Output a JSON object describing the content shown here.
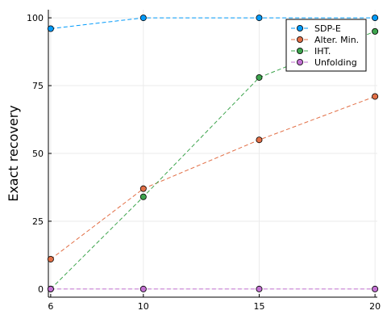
{
  "chart_data": {
    "type": "line",
    "title": "",
    "xlabel": "",
    "ylabel": "Exact recovery",
    "x": [
      6,
      10,
      15,
      20
    ],
    "xticks": [
      "6",
      "10",
      "15",
      "20"
    ],
    "yticks": [
      "0",
      "25",
      "50",
      "75",
      "100"
    ],
    "xlim": [
      5.9,
      20.1
    ],
    "ylim": [
      -3,
      103
    ],
    "grid": true,
    "legend_position": "top-right",
    "line_style": "dashed",
    "series": [
      {
        "name": "SDP-E",
        "color": "#009AFA",
        "values": [
          96,
          100,
          100,
          100
        ]
      },
      {
        "name": "Alter. Min.",
        "color": "#E26F46",
        "values": [
          11,
          37,
          55,
          71
        ]
      },
      {
        "name": "IHT.",
        "color": "#3DA44D",
        "values": [
          0,
          34,
          78,
          95
        ]
      },
      {
        "name": "Unfolding",
        "color": "#C271D2",
        "values": [
          0,
          0,
          0,
          0
        ]
      }
    ]
  }
}
